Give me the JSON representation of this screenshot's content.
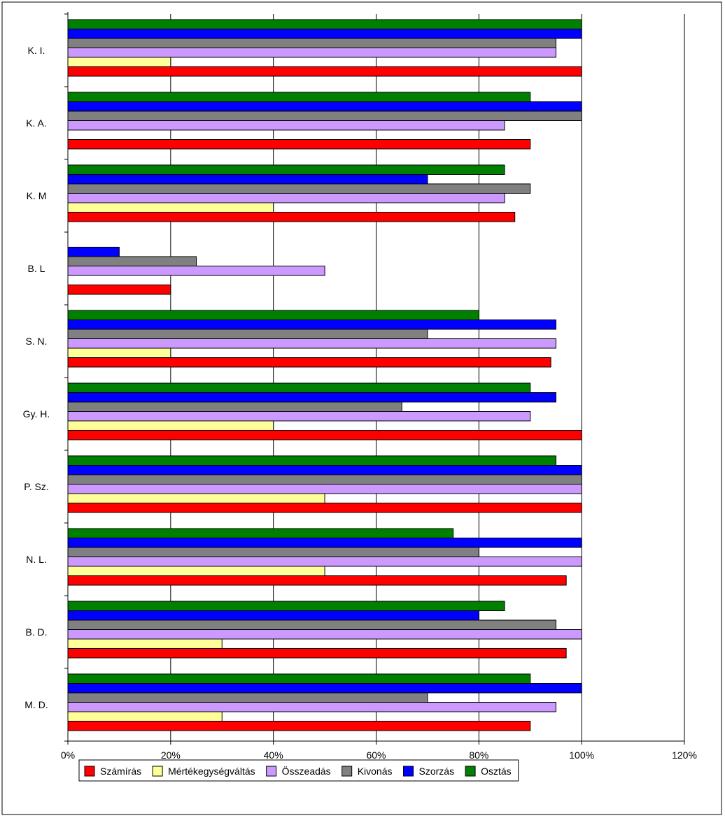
{
  "chart_data": {
    "type": "bar",
    "orientation": "horizontal",
    "categories": [
      "K. I.",
      "K. A.",
      "K. M",
      "B. L",
      "S. N.",
      "Gy. H.",
      "P. Sz.",
      "N. L.",
      "B. D.",
      "M. D."
    ],
    "xlim": [
      0,
      120
    ],
    "xticks": [
      0,
      20,
      40,
      60,
      80,
      100,
      120
    ],
    "xtick_labels": [
      "0%",
      "20%",
      "40%",
      "60%",
      "80%",
      "100%",
      "120%"
    ],
    "grid": "vertical gridlines",
    "legend_position": "bottom",
    "series": [
      {
        "name": "Számírás",
        "color": "#ff0000",
        "values": [
          100,
          90,
          87,
          20,
          94,
          100,
          100,
          97,
          97,
          90
        ]
      },
      {
        "name": "Mértékegységváltás",
        "color": "#ffff99",
        "values": [
          20,
          0,
          40,
          0,
          20,
          40,
          50,
          50,
          30,
          30
        ]
      },
      {
        "name": "Összeadás",
        "color": "#cc99ff",
        "values": [
          95,
          85,
          85,
          50,
          95,
          90,
          100,
          100,
          100,
          95
        ]
      },
      {
        "name": "Kivonás",
        "color": "#808080",
        "values": [
          95,
          100,
          90,
          25,
          70,
          65,
          100,
          80,
          95,
          70
        ]
      },
      {
        "name": "Szorzás",
        "color": "#0000ff",
        "values": [
          100,
          100,
          70,
          10,
          95,
          95,
          100,
          100,
          80,
          100
        ]
      },
      {
        "name": "Osztás",
        "color": "#008000",
        "values": [
          100,
          90,
          85,
          0,
          80,
          90,
          95,
          75,
          85,
          90
        ]
      }
    ]
  }
}
